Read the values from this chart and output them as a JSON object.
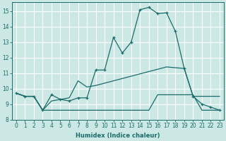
{
  "title": "",
  "xlabel": "Humidex (Indice chaleur)",
  "background_color": "#cce8e4",
  "grid_color": "#b0d4d0",
  "line_color": "#1a6b6b",
  "xlim": [
    -0.5,
    23.5
  ],
  "ylim": [
    8,
    15.6
  ],
  "yticks": [
    8,
    9,
    10,
    11,
    12,
    13,
    14,
    15
  ],
  "xticks": [
    0,
    1,
    2,
    3,
    4,
    5,
    6,
    7,
    8,
    9,
    10,
    11,
    12,
    13,
    14,
    15,
    16,
    17,
    18,
    19,
    20,
    21,
    22,
    23
  ],
  "curve1_x": [
    0,
    1,
    2,
    3,
    4,
    5,
    6,
    7,
    8,
    9,
    10,
    11,
    12,
    13,
    14,
    15,
    16,
    17,
    18,
    19,
    20,
    21,
    22,
    23
  ],
  "curve1_y": [
    9.7,
    9.5,
    9.5,
    8.6,
    9.6,
    9.3,
    9.2,
    9.4,
    9.4,
    11.2,
    11.2,
    13.3,
    12.3,
    13.0,
    15.1,
    15.25,
    14.85,
    14.9,
    13.7,
    11.3,
    9.5,
    9.0,
    8.8,
    8.6
  ],
  "curve2_x": [
    0,
    1,
    2,
    3,
    4,
    5,
    6,
    7,
    8,
    9,
    10,
    11,
    12,
    13,
    14,
    15,
    16,
    17,
    18,
    19,
    20,
    21,
    22,
    23
  ],
  "curve2_y": [
    9.7,
    9.5,
    9.5,
    8.6,
    9.2,
    9.3,
    9.4,
    10.5,
    10.1,
    10.2,
    10.35,
    10.5,
    10.65,
    10.8,
    10.95,
    11.1,
    11.25,
    11.4,
    11.35,
    11.3,
    9.5,
    9.5,
    9.5,
    9.5
  ],
  "curve3_x": [
    0,
    1,
    2,
    3,
    4,
    5,
    6,
    7,
    8,
    9,
    10,
    11,
    12,
    13,
    14,
    15,
    16,
    17,
    18,
    19,
    20,
    21,
    22,
    23
  ],
  "curve3_y": [
    9.7,
    9.5,
    9.5,
    8.6,
    8.6,
    8.6,
    8.6,
    8.6,
    8.6,
    8.6,
    8.6,
    8.6,
    8.6,
    8.6,
    8.6,
    8.6,
    9.6,
    9.6,
    9.6,
    9.6,
    9.6,
    8.6,
    8.6,
    8.6
  ]
}
